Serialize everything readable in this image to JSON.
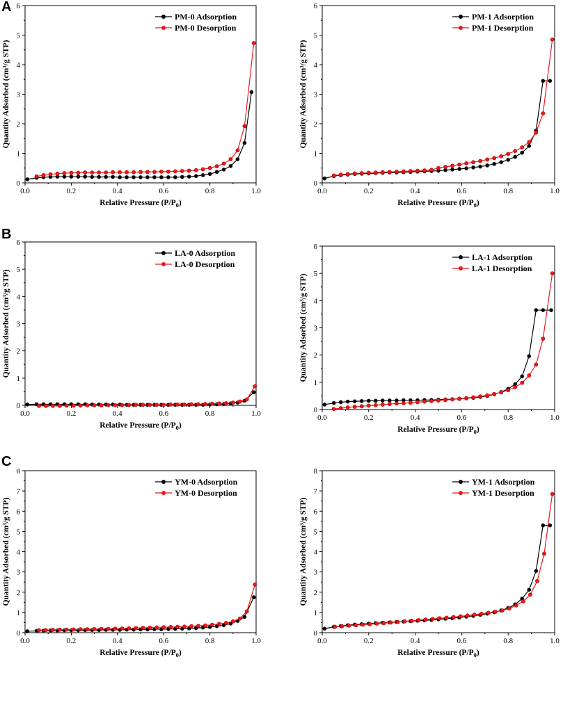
{
  "panel_letters": [
    "A",
    "B",
    "C"
  ],
  "colors": {
    "adsorption": "#000000",
    "desorption": "#e8191b"
  },
  "chart_data": [
    {
      "id": "PM-0",
      "type": "line",
      "panel": "A",
      "xlabel": "Relative Pressure (P/P0)",
      "ylabel": "Quantity Adsorbed (cm³/g STP)",
      "xlim": [
        0,
        1.0
      ],
      "ylim": [
        0,
        6
      ],
      "xticks": [
        "0.0",
        "0.2",
        "0.4",
        "0.6",
        "0.8",
        "1.0"
      ],
      "yticks": [
        "0",
        "1",
        "2",
        "3",
        "4",
        "5",
        "6"
      ],
      "legend": [
        "PM-0 Adsorption",
        "PM-0 Desorption"
      ],
      "legend_position": "top-left",
      "series": [
        {
          "name": "PM-0 Adsorption",
          "color": "#000000",
          "x": [
            0.01,
            0.05,
            0.08,
            0.11,
            0.14,
            0.17,
            0.2,
            0.23,
            0.26,
            0.29,
            0.32,
            0.35,
            0.38,
            0.41,
            0.44,
            0.47,
            0.5,
            0.53,
            0.56,
            0.59,
            0.62,
            0.65,
            0.68,
            0.71,
            0.74,
            0.77,
            0.8,
            0.83,
            0.86,
            0.89,
            0.92,
            0.95,
            0.98
          ],
          "y": [
            0.12,
            0.17,
            0.19,
            0.2,
            0.21,
            0.21,
            0.21,
            0.21,
            0.21,
            0.2,
            0.2,
            0.2,
            0.2,
            0.19,
            0.19,
            0.19,
            0.19,
            0.19,
            0.19,
            0.19,
            0.19,
            0.19,
            0.2,
            0.21,
            0.23,
            0.26,
            0.3,
            0.37,
            0.45,
            0.57,
            0.8,
            1.35,
            3.07
          ]
        },
        {
          "name": "PM-0 Desorption",
          "color": "#e8191b",
          "x": [
            0.99,
            0.95,
            0.92,
            0.89,
            0.86,
            0.83,
            0.8,
            0.77,
            0.74,
            0.71,
            0.68,
            0.65,
            0.62,
            0.59,
            0.56,
            0.53,
            0.5,
            0.47,
            0.44,
            0.41,
            0.38,
            0.35,
            0.32,
            0.29,
            0.26,
            0.23,
            0.2,
            0.17,
            0.14,
            0.11,
            0.08,
            0.05
          ],
          "y": [
            4.73,
            1.92,
            1.1,
            0.8,
            0.65,
            0.56,
            0.5,
            0.46,
            0.43,
            0.41,
            0.4,
            0.39,
            0.38,
            0.38,
            0.37,
            0.37,
            0.37,
            0.36,
            0.36,
            0.36,
            0.36,
            0.35,
            0.35,
            0.35,
            0.35,
            0.34,
            0.34,
            0.33,
            0.31,
            0.29,
            0.26,
            0.22
          ]
        }
      ]
    },
    {
      "id": "PM-1",
      "type": "line",
      "panel": "A",
      "xlabel": "Relative Pressure (P/P0)",
      "ylabel": "Quantity Adsorbed (cm³/g STP)",
      "xlim": [
        0,
        1.0
      ],
      "ylim": [
        0,
        6
      ],
      "xticks": [
        "0.0",
        "0.2",
        "0.4",
        "0.6",
        "0.8",
        "1.0"
      ],
      "yticks": [
        "0",
        "1",
        "2",
        "3",
        "4",
        "5",
        "6"
      ],
      "legend": [
        "PM-1 Adsorption",
        "PM-1 Desorption"
      ],
      "legend_position": "top-left",
      "series": [
        {
          "name": "PM-1 Adsorption",
          "color": "#000000",
          "x": [
            0.01,
            0.05,
            0.08,
            0.11,
            0.14,
            0.17,
            0.2,
            0.23,
            0.26,
            0.29,
            0.32,
            0.35,
            0.38,
            0.41,
            0.44,
            0.47,
            0.5,
            0.53,
            0.56,
            0.59,
            0.62,
            0.65,
            0.68,
            0.71,
            0.74,
            0.77,
            0.8,
            0.83,
            0.86,
            0.89,
            0.92,
            0.95,
            0.98
          ],
          "y": [
            0.15,
            0.23,
            0.26,
            0.28,
            0.3,
            0.31,
            0.32,
            0.33,
            0.34,
            0.35,
            0.35,
            0.36,
            0.37,
            0.38,
            0.39,
            0.4,
            0.41,
            0.43,
            0.45,
            0.47,
            0.49,
            0.52,
            0.55,
            0.59,
            0.64,
            0.7,
            0.78,
            0.88,
            1.02,
            1.25,
            1.77,
            3.45,
            3.45
          ]
        },
        {
          "name": "PM-1 Desorption",
          "color": "#e8191b",
          "x": [
            0.99,
            0.95,
            0.92,
            0.89,
            0.86,
            0.83,
            0.8,
            0.77,
            0.74,
            0.71,
            0.68,
            0.65,
            0.62,
            0.59,
            0.56,
            0.53,
            0.5,
            0.47,
            0.44,
            0.41,
            0.38,
            0.35,
            0.32,
            0.29,
            0.26,
            0.23,
            0.2,
            0.17,
            0.14,
            0.11,
            0.08,
            0.05
          ],
          "y": [
            4.85,
            2.35,
            1.7,
            1.38,
            1.2,
            1.08,
            0.98,
            0.9,
            0.84,
            0.79,
            0.74,
            0.7,
            0.66,
            0.62,
            0.58,
            0.54,
            0.5,
            0.44,
            0.42,
            0.41,
            0.4,
            0.39,
            0.38,
            0.37,
            0.36,
            0.35,
            0.34,
            0.33,
            0.32,
            0.3,
            0.28,
            0.25
          ]
        }
      ]
    },
    {
      "id": "LA-0",
      "type": "line",
      "panel": "B",
      "xlabel": "Relative Pressure (P/P0)",
      "ylabel": "Quantity Adsorbed (cm³/g STP)",
      "xlim": [
        0,
        1.0
      ],
      "ylim": [
        0,
        6
      ],
      "xticks": [
        "0.0",
        "0.2",
        "0.4",
        "0.6",
        "0.8",
        "1.0"
      ],
      "yticks": [
        "0",
        "1",
        "2",
        "3",
        "4",
        "5",
        "6"
      ],
      "legend": [
        "LA-0 Adsorption",
        "LA-0 Desorption"
      ],
      "legend_position": "top-left",
      "series": [
        {
          "name": "LA-0 Adsorption",
          "color": "#000000",
          "x": [
            0.01,
            0.05,
            0.08,
            0.11,
            0.14,
            0.17,
            0.2,
            0.23,
            0.26,
            0.29,
            0.32,
            0.35,
            0.38,
            0.41,
            0.44,
            0.47,
            0.5,
            0.53,
            0.56,
            0.59,
            0.62,
            0.65,
            0.68,
            0.71,
            0.74,
            0.77,
            0.8,
            0.83,
            0.86,
            0.89,
            0.92,
            0.95,
            0.99
          ],
          "y": [
            0.03,
            0.04,
            0.04,
            0.04,
            0.04,
            0.04,
            0.04,
            0.04,
            0.04,
            0.03,
            0.03,
            0.03,
            0.03,
            0.03,
            0.02,
            0.02,
            0.02,
            0.02,
            0.02,
            0.02,
            0.02,
            0.02,
            0.02,
            0.02,
            0.02,
            0.02,
            0.03,
            0.04,
            0.05,
            0.07,
            0.1,
            0.17,
            0.48
          ]
        },
        {
          "name": "LA-0 Desorption",
          "color": "#e8191b",
          "x": [
            0.995,
            0.96,
            0.93,
            0.9,
            0.87,
            0.84,
            0.81,
            0.78,
            0.75,
            0.72,
            0.69,
            0.66,
            0.63,
            0.6,
            0.57,
            0.54,
            0.51,
            0.48,
            0.45,
            0.42,
            0.39,
            0.36,
            0.33,
            0.3,
            0.27,
            0.24,
            0.21,
            0.18,
            0.15,
            0.12,
            0.09,
            0.06
          ],
          "y": [
            0.7,
            0.22,
            0.14,
            0.1,
            0.08,
            0.07,
            0.06,
            0.05,
            0.04,
            0.04,
            0.03,
            0.03,
            0.03,
            0.02,
            0.02,
            0.02,
            0.02,
            0.02,
            0.01,
            0.01,
            0.01,
            0.01,
            0.0,
            0.0,
            0.0,
            -0.01,
            -0.01,
            -0.01,
            -0.02,
            -0.02,
            -0.02,
            -0.02
          ]
        }
      ]
    },
    {
      "id": "LA-1",
      "type": "line",
      "panel": "B",
      "xlabel": "Relative Pressure (P/P0)",
      "ylabel": "Quantity Adsorbed (cm³/g STP)",
      "xlim": [
        0,
        1.0
      ],
      "ylim": [
        0,
        6
      ],
      "xticks": [
        "0.0",
        "0.2",
        "0.4",
        "0.6",
        "0.8",
        "1.0"
      ],
      "yticks": [
        "0",
        "1",
        "2",
        "3",
        "4",
        "5",
        "6"
      ],
      "legend": [
        "LA-1 Adsorption",
        "LA-1 Desorption"
      ],
      "legend_position": "top-left",
      "series": [
        {
          "name": "LA-1 Adsorption",
          "color": "#000000",
          "x": [
            0.01,
            0.05,
            0.08,
            0.11,
            0.14,
            0.17,
            0.2,
            0.23,
            0.26,
            0.29,
            0.32,
            0.35,
            0.38,
            0.41,
            0.44,
            0.47,
            0.5,
            0.53,
            0.56,
            0.59,
            0.62,
            0.65,
            0.68,
            0.71,
            0.74,
            0.77,
            0.8,
            0.83,
            0.86,
            0.89,
            0.92,
            0.95,
            0.985
          ],
          "y": [
            0.18,
            0.24,
            0.27,
            0.29,
            0.3,
            0.31,
            0.32,
            0.32,
            0.33,
            0.33,
            0.33,
            0.34,
            0.34,
            0.34,
            0.35,
            0.35,
            0.36,
            0.37,
            0.38,
            0.39,
            0.41,
            0.43,
            0.46,
            0.5,
            0.56,
            0.64,
            0.76,
            0.93,
            1.22,
            1.96,
            3.65,
            3.65,
            3.65
          ]
        },
        {
          "name": "LA-1 Desorption",
          "color": "#e8191b",
          "x": [
            0.99,
            0.95,
            0.92,
            0.89,
            0.86,
            0.83,
            0.8,
            0.77,
            0.74,
            0.71,
            0.68,
            0.65,
            0.62,
            0.59,
            0.56,
            0.53,
            0.5,
            0.47,
            0.44,
            0.41,
            0.38,
            0.35,
            0.32,
            0.29,
            0.26,
            0.23,
            0.2,
            0.17,
            0.14,
            0.11,
            0.08,
            0.05
          ],
          "y": [
            5.0,
            2.6,
            1.65,
            1.25,
            0.98,
            0.82,
            0.71,
            0.63,
            0.57,
            0.52,
            0.48,
            0.45,
            0.42,
            0.4,
            0.37,
            0.35,
            0.33,
            0.31,
            0.29,
            0.27,
            0.25,
            0.23,
            0.22,
            0.2,
            0.18,
            0.16,
            0.14,
            0.12,
            0.1,
            0.08,
            0.05,
            0.02
          ]
        }
      ]
    },
    {
      "id": "YM-0",
      "type": "line",
      "panel": "C",
      "xlabel": "Relative Pressure (P/P0)",
      "ylabel": "Quantity Adsorbed (cm³/g STP)",
      "xlim": [
        0,
        1.0
      ],
      "ylim": [
        0,
        8
      ],
      "xticks": [
        "0.0",
        "0.2",
        "0.4",
        "0.6",
        "0.8",
        "1.0"
      ],
      "yticks": [
        "0",
        "1",
        "2",
        "3",
        "4",
        "5",
        "6",
        "7",
        "8"
      ],
      "legend": [
        "YM-0 Adsorption",
        "YM-0 Desorption"
      ],
      "legend_position": "top-right",
      "series": [
        {
          "name": "YM-0 Adsorption",
          "color": "#000000",
          "x": [
            0.01,
            0.05,
            0.08,
            0.11,
            0.14,
            0.17,
            0.2,
            0.23,
            0.26,
            0.29,
            0.32,
            0.35,
            0.38,
            0.41,
            0.44,
            0.47,
            0.5,
            0.53,
            0.56,
            0.59,
            0.62,
            0.65,
            0.68,
            0.71,
            0.74,
            0.77,
            0.8,
            0.83,
            0.86,
            0.89,
            0.92,
            0.95,
            0.99
          ],
          "y": [
            0.07,
            0.09,
            0.1,
            0.11,
            0.11,
            0.12,
            0.12,
            0.12,
            0.13,
            0.13,
            0.13,
            0.14,
            0.14,
            0.14,
            0.15,
            0.15,
            0.16,
            0.16,
            0.17,
            0.17,
            0.18,
            0.19,
            0.2,
            0.21,
            0.23,
            0.25,
            0.28,
            0.32,
            0.37,
            0.45,
            0.58,
            0.78,
            1.75
          ]
        },
        {
          "name": "YM-0 Desorption",
          "color": "#e8191b",
          "x": [
            0.995,
            0.96,
            0.93,
            0.9,
            0.87,
            0.84,
            0.81,
            0.78,
            0.75,
            0.72,
            0.69,
            0.66,
            0.63,
            0.6,
            0.57,
            0.54,
            0.51,
            0.48,
            0.45,
            0.42,
            0.39,
            0.36,
            0.33,
            0.3,
            0.27,
            0.24,
            0.21,
            0.18,
            0.15,
            0.12,
            0.09,
            0.06
          ],
          "y": [
            2.38,
            1.05,
            0.7,
            0.56,
            0.48,
            0.43,
            0.39,
            0.36,
            0.34,
            0.32,
            0.3,
            0.29,
            0.28,
            0.27,
            0.26,
            0.25,
            0.24,
            0.23,
            0.22,
            0.21,
            0.2,
            0.19,
            0.19,
            0.18,
            0.17,
            0.17,
            0.16,
            0.15,
            0.15,
            0.14,
            0.13,
            0.12
          ]
        }
      ]
    },
    {
      "id": "YM-1",
      "type": "line",
      "panel": "C",
      "xlabel": "Relative Pressure (P/P0)",
      "ylabel": "Quantity Adsorbed (cm³/g STP)",
      "xlim": [
        0,
        1.0
      ],
      "ylim": [
        0,
        8
      ],
      "xticks": [
        "0.0",
        "0.2",
        "0.4",
        "0.6",
        "0.8",
        "1.0"
      ],
      "yticks": [
        "0",
        "1",
        "2",
        "3",
        "4",
        "5",
        "6",
        "7",
        "8"
      ],
      "legend": [
        "YM-1 Adsorption",
        "YM-1 Desorption"
      ],
      "legend_position": "top-right",
      "series": [
        {
          "name": "YM-1 Adsorption",
          "color": "#000000",
          "x": [
            0.01,
            0.05,
            0.08,
            0.11,
            0.14,
            0.17,
            0.2,
            0.23,
            0.26,
            0.29,
            0.32,
            0.35,
            0.38,
            0.41,
            0.44,
            0.47,
            0.5,
            0.53,
            0.56,
            0.59,
            0.62,
            0.65,
            0.68,
            0.71,
            0.74,
            0.77,
            0.8,
            0.83,
            0.86,
            0.89,
            0.92,
            0.95,
            0.98
          ],
          "y": [
            0.2,
            0.29,
            0.33,
            0.37,
            0.4,
            0.42,
            0.45,
            0.47,
            0.49,
            0.51,
            0.53,
            0.55,
            0.57,
            0.59,
            0.61,
            0.63,
            0.66,
            0.69,
            0.72,
            0.75,
            0.79,
            0.83,
            0.88,
            0.94,
            1.01,
            1.1,
            1.22,
            1.4,
            1.68,
            2.12,
            3.05,
            5.3,
            5.3
          ]
        },
        {
          "name": "YM-1 Desorption",
          "color": "#e8191b",
          "x": [
            0.99,
            0.955,
            0.925,
            0.895,
            0.865,
            0.835,
            0.805,
            0.775,
            0.745,
            0.715,
            0.685,
            0.655,
            0.625,
            0.595,
            0.565,
            0.535,
            0.505,
            0.475,
            0.445,
            0.415,
            0.385,
            0.355,
            0.325,
            0.295,
            0.265,
            0.235,
            0.205,
            0.175,
            0.145,
            0.115,
            0.085,
            0.055
          ],
          "y": [
            6.85,
            3.9,
            2.55,
            1.88,
            1.55,
            1.35,
            1.2,
            1.1,
            1.03,
            0.98,
            0.93,
            0.89,
            0.85,
            0.81,
            0.77,
            0.74,
            0.71,
            0.68,
            0.65,
            0.62,
            0.59,
            0.56,
            0.53,
            0.5,
            0.47,
            0.45,
            0.42,
            0.4,
            0.37,
            0.35,
            0.32,
            0.29
          ]
        }
      ]
    }
  ]
}
